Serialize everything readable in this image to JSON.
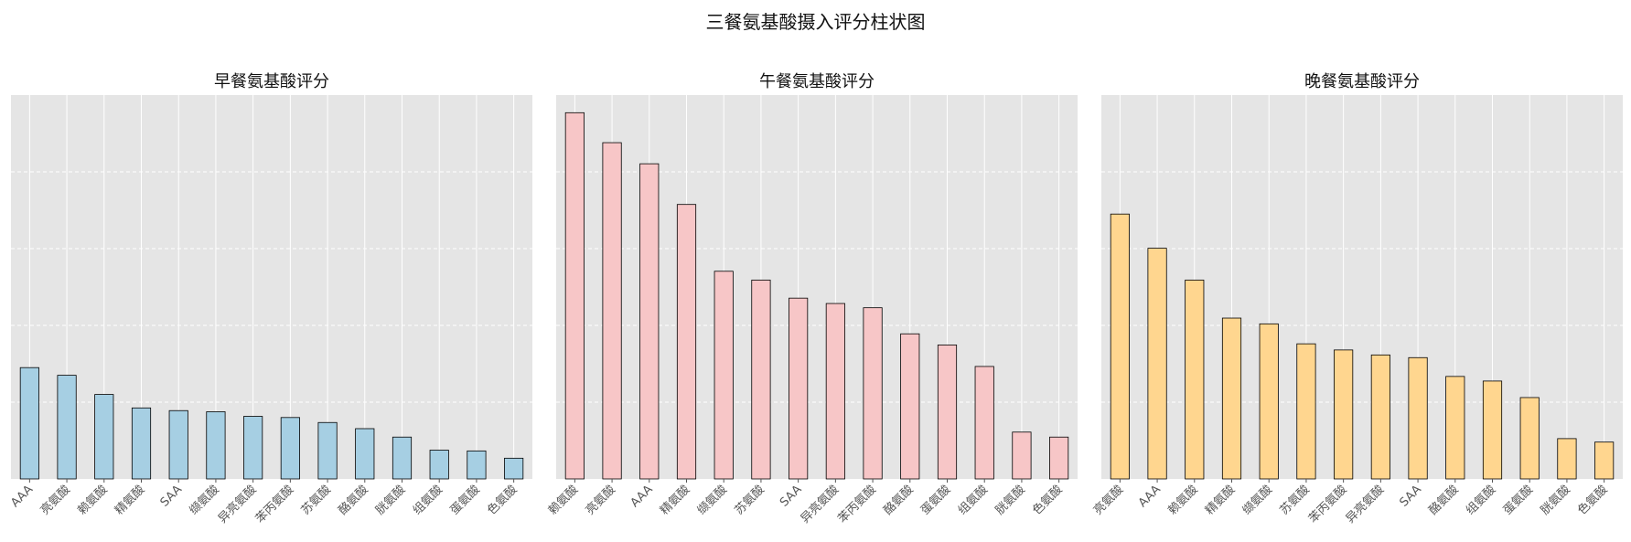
{
  "page": {
    "title": "三餐氨基酸摄入评分柱状图"
  },
  "chart_data": [
    {
      "type": "bar",
      "title": "早餐氨基酸评分",
      "color": "#a6cfe3",
      "edge_color": "#000000",
      "background": "#e5e5e5",
      "grid": true,
      "ylim": [
        0,
        1.0
      ],
      "categories": [
        "AAA",
        "亮氨酸",
        "赖氨酸",
        "精氨酸",
        "SAA",
        "缬氨酸",
        "异亮氨酸",
        "苯丙氨酸",
        "苏氨酸",
        "酪氨酸",
        "胱氨酸",
        "组氨酸",
        "蛋氨酸",
        "色氨酸"
      ],
      "values": [
        0.29,
        0.27,
        0.22,
        0.185,
        0.178,
        0.175,
        0.163,
        0.16,
        0.147,
        0.131,
        0.109,
        0.075,
        0.073,
        0.054
      ]
    },
    {
      "type": "bar",
      "title": "午餐氨基酸评分",
      "color": "#f7c6c7",
      "edge_color": "#000000",
      "background": "#e5e5e5",
      "grid": true,
      "ylim": [
        0,
        1.0
      ],
      "categories": [
        "赖氨酸",
        "亮氨酸",
        "AAA",
        "精氨酸",
        "缬氨酸",
        "苏氨酸",
        "SAA",
        "异亮氨酸",
        "苯丙氨酸",
        "酪氨酸",
        "蛋氨酸",
        "组氨酸",
        "胱氨酸",
        "色氨酸"
      ],
      "values": [
        0.954,
        0.876,
        0.821,
        0.715,
        0.541,
        0.518,
        0.471,
        0.457,
        0.446,
        0.378,
        0.349,
        0.293,
        0.122,
        0.109
      ]
    },
    {
      "type": "bar",
      "title": "晚餐氨基酸评分",
      "color": "#ffd68f",
      "edge_color": "#000000",
      "background": "#e5e5e5",
      "grid": true,
      "ylim": [
        0,
        1.0
      ],
      "categories": [
        "亮氨酸",
        "AAA",
        "赖氨酸",
        "精氨酸",
        "缬氨酸",
        "苏氨酸",
        "苯丙氨酸",
        "异亮氨酸",
        "SAA",
        "酪氨酸",
        "组氨酸",
        "蛋氨酸",
        "胱氨酸",
        "色氨酸"
      ],
      "values": [
        0.69,
        0.601,
        0.518,
        0.419,
        0.404,
        0.352,
        0.336,
        0.323,
        0.316,
        0.267,
        0.255,
        0.212,
        0.105,
        0.096
      ]
    }
  ]
}
